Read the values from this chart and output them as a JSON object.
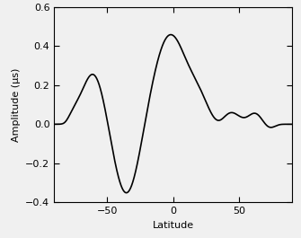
{
  "title": "",
  "xlabel": "Latitude",
  "ylabel": "Amplitude (μs)",
  "xlim": [
    -90,
    90
  ],
  "ylim": [
    -0.4,
    0.6
  ],
  "xticks": [
    -50,
    0,
    50
  ],
  "yticks": [
    -0.4,
    -0.2,
    0.0,
    0.2,
    0.4,
    0.6
  ],
  "line_color": "#000000",
  "line_width": 1.2,
  "background_color": "#f0f0f0",
  "figsize": [
    3.35,
    2.65
  ],
  "dpi": 100
}
